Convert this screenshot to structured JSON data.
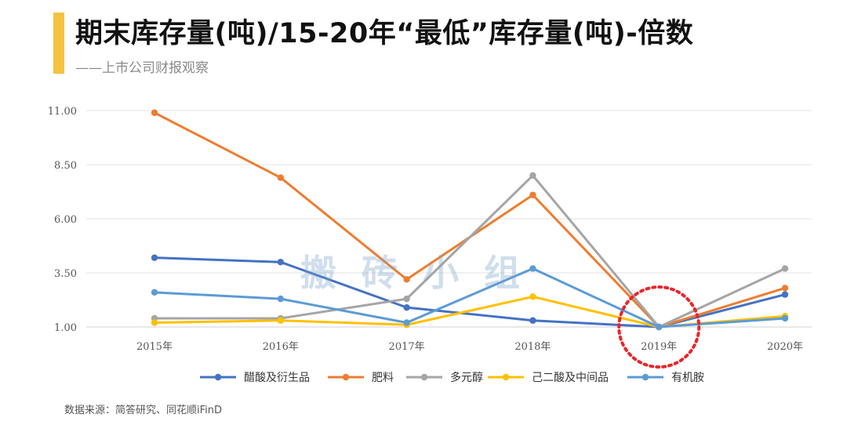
{
  "header": {
    "title": "期末库存量(吨)/15-20年“最低”库存量(吨)-倍数",
    "subtitle": "——上市公司财报观察"
  },
  "watermark": "搬砖小组",
  "footer": "数据来源：简答研究、同花顺iFinD",
  "colors": {
    "accent": "#f5c242",
    "grid": "#e3e3e3",
    "highlight_circle": "#e8262b"
  },
  "chart_data": {
    "type": "line",
    "title": "",
    "xlabel": "",
    "ylabel": "",
    "categories": [
      "2015年",
      "2016年",
      "2017年",
      "2018年",
      "2019年",
      "2020年"
    ],
    "yticks": [
      "1.00",
      "3.50",
      "6.00",
      "8.50",
      "11.00"
    ],
    "ylim": [
      1.0,
      11.0
    ],
    "grid": true,
    "legend_position": "bottom",
    "highlight": "2019年",
    "series": [
      {
        "name": "醋酸及衍生品",
        "color": "#4472c4",
        "values": [
          4.2,
          4.0,
          1.9,
          1.3,
          1.0,
          2.5
        ]
      },
      {
        "name": "肥料",
        "color": "#ed7d31",
        "values": [
          10.9,
          7.9,
          3.2,
          7.1,
          1.0,
          2.8
        ]
      },
      {
        "name": "多元醇",
        "color": "#a5a5a5",
        "values": [
          1.4,
          1.4,
          2.3,
          8.0,
          1.0,
          3.7
        ]
      },
      {
        "name": "己二酸及中间品",
        "color": "#ffc000",
        "values": [
          1.2,
          1.3,
          1.1,
          2.4,
          1.0,
          1.5
        ]
      },
      {
        "name": "有机胺",
        "color": "#5b9bd5",
        "values": [
          2.6,
          2.3,
          1.2,
          3.7,
          1.0,
          1.4
        ]
      }
    ]
  }
}
